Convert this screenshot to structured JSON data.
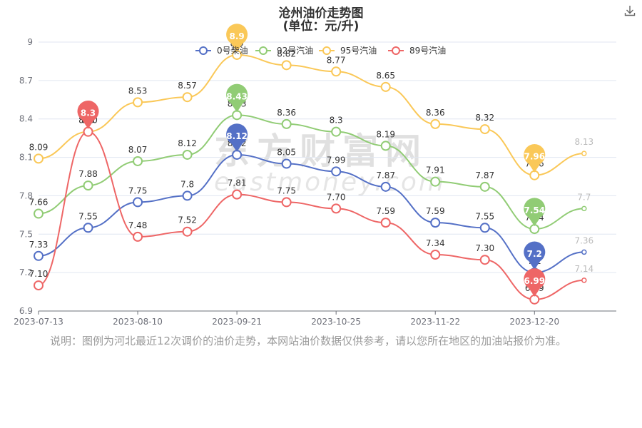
{
  "header": {
    "title": "沧州油价走势图",
    "subtitle": "(单位：元/升)"
  },
  "toolbar": {
    "download_icon": "download-icon"
  },
  "watermark": {
    "text_cn": "东方财富网",
    "text_en": "eastmoney.com"
  },
  "note": "说明：图例为河北最近12次调价的油价走势，本网站油价数据仅供参考，请以您所在地区的加油站报价为准。",
  "colors": {
    "axis": "#6e7079",
    "grid": "#e0e6f1",
    "label": "#333333"
  },
  "chart_data": {
    "type": "line",
    "title": "沧州油价走势图",
    "subtitle": "(单位：元/升)",
    "xlabel": "",
    "ylabel": "",
    "ylim": [
      6.9,
      9.0
    ],
    "yticks": [
      "6.9",
      "7.2",
      "7.5",
      "7.8",
      "8.1",
      "8.4",
      "8.7",
      "9"
    ],
    "xticks": [
      {
        "index": 0,
        "label": "2023-07-13"
      },
      {
        "index": 2,
        "label": "2023-08-10"
      },
      {
        "index": 4,
        "label": "2023-09-21"
      },
      {
        "index": 6,
        "label": "2023-10-25"
      },
      {
        "index": 8,
        "label": "2023-11-22"
      },
      {
        "index": 10,
        "label": "2023-12-20"
      }
    ],
    "n_points": 12,
    "legend_position": "top-center",
    "series": [
      {
        "name": "0号柴油",
        "color": "#5470c6",
        "values": [
          7.33,
          7.55,
          7.75,
          7.8,
          8.12,
          8.05,
          7.99,
          7.87,
          7.59,
          7.55,
          7.2,
          7.36
        ],
        "labels": [
          "7.33",
          "7.55",
          "7.75",
          "7.8",
          "8.12",
          "8.05",
          "7.99",
          "7.87",
          "7.59",
          "7.55",
          "7.2",
          "7.36"
        ],
        "max_label": "8.12",
        "min_label": "7.2"
      },
      {
        "name": "92号汽油",
        "color": "#91cc75",
        "values": [
          7.66,
          7.88,
          8.07,
          8.12,
          8.43,
          8.36,
          8.3,
          8.19,
          7.91,
          7.87,
          7.54,
          7.7
        ],
        "labels": [
          "7.66",
          "7.88",
          "8.07",
          "8.12",
          "8.43",
          "8.36",
          "8.3",
          "8.19",
          "7.91",
          "7.87",
          "7.54",
          "7.7"
        ],
        "max_label": "8.43",
        "min_label": "7.54"
      },
      {
        "name": "95号汽油",
        "color": "#fac858",
        "values": [
          8.09,
          8.3,
          8.53,
          8.57,
          8.9,
          8.82,
          8.77,
          8.65,
          8.36,
          8.32,
          7.96,
          8.13
        ],
        "labels": [
          "8.09",
          "8.3",
          "8.53",
          "8.57",
          "8.9",
          "8.82",
          "8.77",
          "8.65",
          "8.36",
          "8.32",
          "7.96",
          "8.13"
        ],
        "max_label": "8.9",
        "min_label": "7.96"
      },
      {
        "name": "89号汽油",
        "color": "#ee6666",
        "values": [
          7.1,
          8.3,
          7.48,
          7.52,
          7.81,
          7.75,
          7.7,
          7.59,
          7.34,
          7.3,
          6.99,
          7.14
        ],
        "labels": [
          "7.10",
          "8.30",
          "7.48",
          "7.52",
          "7.81",
          "7.75",
          "7.70",
          "7.59",
          "7.34",
          "7.30",
          "6.99",
          "7.14"
        ],
        "max_label": "8.3",
        "min_label": "6.99"
      }
    ]
  }
}
